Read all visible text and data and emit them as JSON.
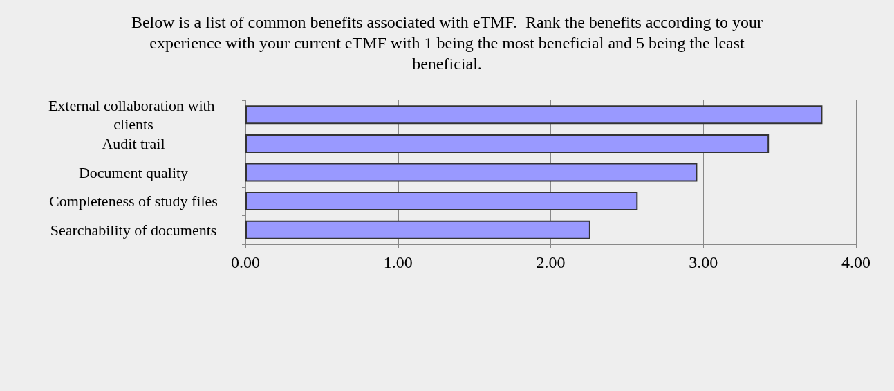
{
  "chart_data": {
    "type": "bar",
    "orientation": "horizontal",
    "title": "Below is a list of common benefits associated with eTMF.  Rank the benefits according to your experience with your current eTMF with 1 being the most beneficial and 5 being the least beneficial.",
    "categories": [
      "External collaboration with clients",
      "Audit trail",
      "Document quality",
      "Completeness of study files",
      "Searchability of documents"
    ],
    "values": [
      3.78,
      3.43,
      2.96,
      2.57,
      2.26
    ],
    "color": "#9999ff",
    "xlim": [
      0,
      4
    ],
    "xticks": [
      {
        "value": 0,
        "label": "0.00"
      },
      {
        "value": 1,
        "label": "1.00"
      },
      {
        "value": 2,
        "label": "2.00"
      },
      {
        "value": 3,
        "label": "3.00"
      },
      {
        "value": 4,
        "label": "4.00"
      }
    ],
    "grid": "x"
  }
}
